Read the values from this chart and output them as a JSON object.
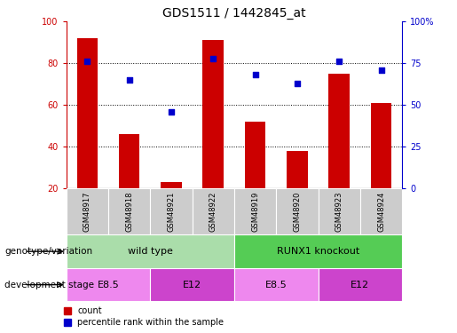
{
  "title": "GDS1511 / 1442845_at",
  "samples": [
    "GSM48917",
    "GSM48918",
    "GSM48921",
    "GSM48922",
    "GSM48919",
    "GSM48920",
    "GSM48923",
    "GSM48924"
  ],
  "counts": [
    92,
    46,
    23,
    91,
    52,
    38,
    75,
    61
  ],
  "percentiles": [
    76,
    65,
    46,
    78,
    68,
    63,
    76,
    71
  ],
  "ymin": 20,
  "ymax": 100,
  "yticks_left": [
    20,
    40,
    60,
    80,
    100
  ],
  "yticks_right": [
    0,
    25,
    50,
    75,
    100
  ],
  "bar_color": "#cc0000",
  "dot_color": "#0000cc",
  "light_green": "#aaddaa",
  "dark_green": "#55cc55",
  "light_purple": "#ee88ee",
  "dark_purple": "#cc44cc",
  "sample_bg": "#cccccc",
  "annotation_rows": [
    {
      "label": "genotype/variation",
      "groups": [
        {
          "text": "wild type",
          "span": [
            0,
            4
          ],
          "color": "#aaddaa"
        },
        {
          "text": "RUNX1 knockout",
          "span": [
            4,
            8
          ],
          "color": "#55cc55"
        }
      ]
    },
    {
      "label": "development stage",
      "groups": [
        {
          "text": "E8.5",
          "span": [
            0,
            2
          ],
          "color": "#ee88ee"
        },
        {
          "text": "E12",
          "span": [
            2,
            4
          ],
          "color": "#cc44cc"
        },
        {
          "text": "E8.5",
          "span": [
            4,
            6
          ],
          "color": "#ee88ee"
        },
        {
          "text": "E12",
          "span": [
            6,
            8
          ],
          "color": "#cc44cc"
        }
      ]
    }
  ],
  "legend": [
    {
      "label": "count",
      "color": "#cc0000"
    },
    {
      "label": "percentile rank within the sample",
      "color": "#0000cc"
    }
  ]
}
